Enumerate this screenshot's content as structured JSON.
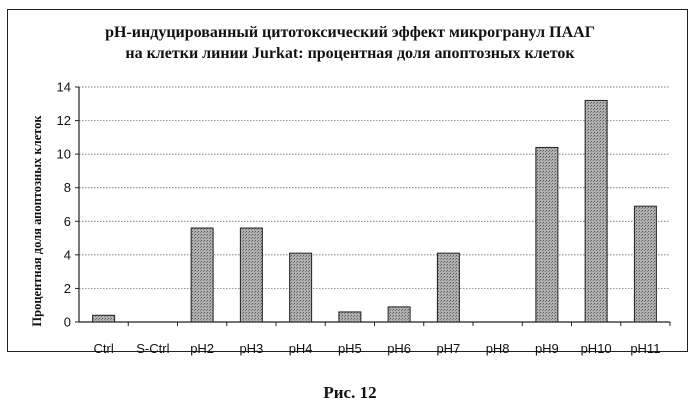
{
  "chart_data": {
    "type": "bar",
    "title_lines": [
      "pH-индуцированный цитотоксический эффект микрогранул ПААГ",
      "на клетки линии Jurkat: процентная доля апоптозных клеток"
    ],
    "ylabel": "Процентная доля апоптозных клеток",
    "xlabel": "",
    "categories": [
      "Ctrl",
      "S-Ctrl",
      "pH2",
      "pH3",
      "pH4",
      "pH5",
      "pH6",
      "pH7",
      "pH8",
      "pH9",
      "pH10",
      "pH11"
    ],
    "values": [
      0.4,
      0,
      5.6,
      5.6,
      4.1,
      0.6,
      0.9,
      4.1,
      0,
      10.4,
      13.2,
      6.9
    ],
    "ylim": [
      0,
      14
    ],
    "yticks": [
      0,
      2,
      4,
      6,
      8,
      10,
      12,
      14
    ],
    "grid": true,
    "bar_color": "#a3a3a3"
  },
  "caption": "Рис. 12"
}
